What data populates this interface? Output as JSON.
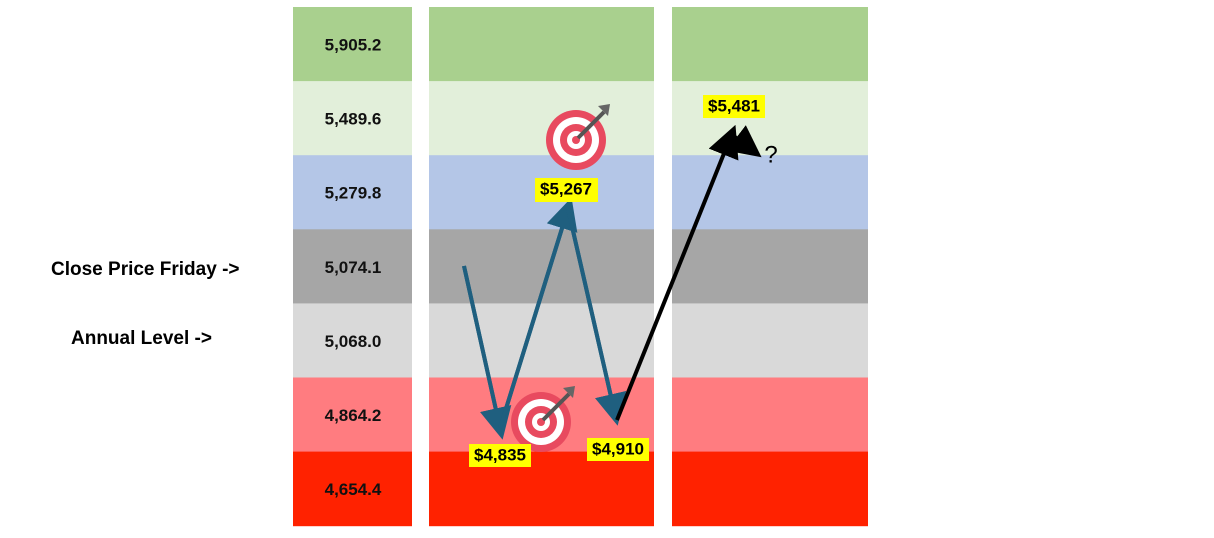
{
  "labels": {
    "close_price": "Close Price Friday ->",
    "annual_level": "Annual Level ->"
  },
  "levels": [
    "5,905.2",
    "5,489.6",
    "5,279.8",
    "5,074.1",
    "5,068.0",
    "4,864.2",
    "4,654.4"
  ],
  "callouts": {
    "high_target": "$5,267",
    "low_target": "$4,835",
    "low_close": "$4,910",
    "next_high": "$5,481",
    "question": "?"
  }
}
